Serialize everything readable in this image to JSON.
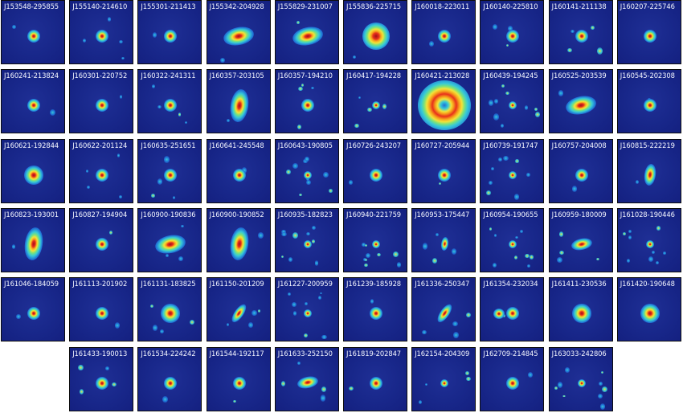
{
  "panels": [
    {
      "name": "J153548-295855",
      "src": {
        "size": "small",
        "shape": "round"
      },
      "noise": "low"
    },
    {
      "name": "J155140-214610",
      "src": {
        "size": "small",
        "shape": "round"
      },
      "noise": "medium"
    },
    {
      "name": "J155301-211413",
      "src": {
        "size": "small",
        "shape": "round"
      },
      "noise": "low"
    },
    {
      "name": "J155342-204928",
      "src": {
        "size": "medium",
        "shape": "elongated"
      },
      "noise": "low"
    },
    {
      "name": "J155829-231007",
      "src": {
        "size": "medium",
        "shape": "elongated"
      },
      "noise": "low"
    },
    {
      "name": "J155836-225715",
      "src": {
        "size": "large",
        "shape": "round"
      },
      "noise": "low"
    },
    {
      "name": "J160018-223011",
      "src": {
        "size": "small",
        "shape": "round"
      },
      "noise": "low"
    },
    {
      "name": "J160140-225810",
      "src": {
        "size": "small",
        "shape": "round"
      },
      "noise": "medium"
    },
    {
      "name": "J160141-211138",
      "src": {
        "size": "small",
        "shape": "round"
      },
      "noise": "medium"
    },
    {
      "name": "J160207-225746",
      "src": {
        "size": "small",
        "shape": "round"
      },
      "noise": "low"
    },
    {
      "name": "J160241-213824",
      "src": {
        "size": "small",
        "shape": "round"
      },
      "noise": "low"
    },
    {
      "name": "J160301-220752",
      "src": {
        "size": "small",
        "shape": "round"
      },
      "noise": "low"
    },
    {
      "name": "J160322-241311",
      "src": {
        "size": "small",
        "shape": "round"
      },
      "noise": "medium"
    },
    {
      "name": "J160357-203105",
      "src": {
        "size": "medium",
        "shape": "vertical"
      },
      "noise": "low"
    },
    {
      "name": "J160357-194210",
      "src": {
        "size": "small",
        "shape": "round"
      },
      "noise": "medium"
    },
    {
      "name": "J160417-194228",
      "src": {
        "size": "tiny",
        "shape": "round"
      },
      "noise": "medium"
    },
    {
      "name": "J160421-213028",
      "src": {
        "size": "ring",
        "shape": "ring"
      },
      "noise": "low"
    },
    {
      "name": "J160439-194245",
      "src": {
        "size": "tiny",
        "shape": "round"
      },
      "noise": "high"
    },
    {
      "name": "J160525-203539",
      "src": {
        "size": "medium",
        "shape": "elongated"
      },
      "noise": "low"
    },
    {
      "name": "J160545-202308",
      "src": {
        "size": "small",
        "shape": "round"
      },
      "noise": "low"
    },
    {
      "name": "J160621-192844",
      "src": {
        "size": "medium",
        "shape": "round"
      },
      "noise": "low"
    },
    {
      "name": "J160622-201124",
      "src": {
        "size": "small",
        "shape": "round"
      },
      "noise": "medium"
    },
    {
      "name": "J160635-251651",
      "src": {
        "size": "small",
        "shape": "round"
      },
      "noise": "medium"
    },
    {
      "name": "J160641-245548",
      "src": {
        "size": "small",
        "shape": "round"
      },
      "noise": "low"
    },
    {
      "name": "J160643-190805",
      "src": {
        "size": "tiny",
        "shape": "round"
      },
      "noise": "high"
    },
    {
      "name": "J160726-243207",
      "src": {
        "size": "small",
        "shape": "round"
      },
      "noise": "low"
    },
    {
      "name": "J160727-205944",
      "src": {
        "size": "small",
        "shape": "round"
      },
      "noise": "low"
    },
    {
      "name": "J160739-191747",
      "src": {
        "size": "tiny",
        "shape": "round"
      },
      "noise": "high"
    },
    {
      "name": "J160757-204008",
      "src": {
        "size": "small",
        "shape": "round"
      },
      "noise": "low"
    },
    {
      "name": "J160815-222219",
      "src": {
        "size": "small",
        "shape": "vertical"
      },
      "noise": "low"
    },
    {
      "name": "J160823-193001",
      "src": {
        "size": "medium",
        "shape": "vertical"
      },
      "noise": "low"
    },
    {
      "name": "J160827-194904",
      "src": {
        "size": "small",
        "shape": "round"
      },
      "noise": "low"
    },
    {
      "name": "J160900-190836",
      "src": {
        "size": "medium",
        "shape": "elongated"
      },
      "noise": "medium"
    },
    {
      "name": "J160900-190852",
      "src": {
        "size": "medium",
        "shape": "vertical"
      },
      "noise": "low"
    },
    {
      "name": "J160935-182823",
      "src": {
        "size": "tiny",
        "shape": "round"
      },
      "noise": "high"
    },
    {
      "name": "J160940-221759",
      "src": {
        "size": "tiny",
        "shape": "round"
      },
      "noise": "high"
    },
    {
      "name": "J160953-175447",
      "src": {
        "size": "tiny",
        "shape": "vertical"
      },
      "noise": "medium"
    },
    {
      "name": "J160954-190655",
      "src": {
        "size": "tiny",
        "shape": "round"
      },
      "noise": "high"
    },
    {
      "name": "J160959-180009",
      "src": {
        "size": "small",
        "shape": "elongated"
      },
      "noise": "medium"
    },
    {
      "name": "J161028-190446",
      "src": {
        "size": "tiny",
        "shape": "round"
      },
      "noise": "high"
    },
    {
      "name": "J161046-184059",
      "src": {
        "size": "small",
        "shape": "round"
      },
      "noise": "low"
    },
    {
      "name": "J161113-201902",
      "src": {
        "size": "small",
        "shape": "round"
      },
      "noise": "low"
    },
    {
      "name": "J161131-183825",
      "src": {
        "size": "medium",
        "shape": "round"
      },
      "noise": "medium"
    },
    {
      "name": "J161150-201209",
      "src": {
        "size": "small",
        "shape": "diagonal"
      },
      "noise": "medium"
    },
    {
      "name": "J161227-200959",
      "src": {
        "size": "tiny",
        "shape": "round"
      },
      "noise": "high"
    },
    {
      "name": "J161239-185928",
      "src": {
        "size": "small",
        "shape": "round"
      },
      "noise": "low"
    },
    {
      "name": "J161336-250347",
      "src": {
        "size": "small",
        "shape": "diagonal"
      },
      "noise": "medium"
    },
    {
      "name": "J161354-232034",
      "src": {
        "size": "small",
        "shape": "double"
      },
      "noise": "low"
    },
    {
      "name": "J161411-230536",
      "src": {
        "size": "medium",
        "shape": "round"
      },
      "noise": "low"
    },
    {
      "name": "J161420-190648",
      "src": {
        "size": "medium",
        "shape": "round"
      },
      "noise": "low"
    },
    {
      "name": "J161433-190013",
      "src": {
        "size": "small",
        "shape": "round"
      },
      "noise": "medium"
    },
    {
      "name": "J161534-224242",
      "src": {
        "size": "small",
        "shape": "round"
      },
      "noise": "low"
    },
    {
      "name": "J161544-192117",
      "src": {
        "size": "small",
        "shape": "round"
      },
      "noise": "low"
    },
    {
      "name": "J161633-252150",
      "src": {
        "size": "small",
        "shape": "elongated"
      },
      "noise": "medium"
    },
    {
      "name": "J161819-202847",
      "src": {
        "size": "small",
        "shape": "round"
      },
      "noise": "low"
    },
    {
      "name": "J162154-204309",
      "src": {
        "size": "tiny",
        "shape": "round"
      },
      "noise": "medium"
    },
    {
      "name": "J162709-214845",
      "src": {
        "size": "small",
        "shape": "round"
      },
      "noise": "low"
    },
    {
      "name": "J163033-242806",
      "src": {
        "size": "tiny",
        "shape": "round"
      },
      "noise": "high"
    }
  ],
  "colors": {
    "background": "#1a2a8c",
    "low": "#1f6fd6",
    "mid": "#36c9d8",
    "high": "#f2e33a",
    "peak": "#e8301c",
    "core": "#a0101a"
  }
}
